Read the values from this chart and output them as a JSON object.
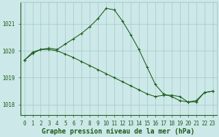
{
  "title": "Graphe pression niveau de la mer (hPa)",
  "bg_color": "#cce8e8",
  "grid_color": "#aacccc",
  "line_color": "#1a5c1a",
  "xlim": [
    -0.5,
    23.5
  ],
  "ylim": [
    1017.6,
    1021.8
  ],
  "yticks": [
    1018,
    1019,
    1020,
    1021
  ],
  "xticks": [
    0,
    1,
    2,
    3,
    4,
    5,
    6,
    7,
    8,
    9,
    10,
    11,
    12,
    13,
    14,
    15,
    16,
    17,
    18,
    19,
    20,
    21,
    22,
    23
  ],
  "series1_x": [
    0,
    1,
    2,
    3,
    4,
    5,
    6,
    7,
    8,
    9,
    10,
    11,
    12,
    13,
    14,
    15,
    16,
    17,
    18,
    19,
    20,
    21,
    22,
    23
  ],
  "series1_y": [
    1019.65,
    1019.95,
    1020.05,
    1020.1,
    1020.05,
    1020.25,
    1020.45,
    1020.65,
    1020.9,
    1021.2,
    1021.58,
    1021.52,
    1021.1,
    1020.6,
    1020.05,
    1019.4,
    1018.75,
    1018.4,
    1018.3,
    1018.15,
    1018.1,
    1018.1,
    1018.45,
    1018.5
  ],
  "series2_x": [
    0,
    1,
    2,
    3,
    4,
    5,
    6,
    7,
    8,
    9,
    10,
    11,
    12,
    13,
    14,
    15,
    16,
    17,
    18,
    19,
    20,
    21,
    22,
    23
  ],
  "series2_y": [
    1019.65,
    1019.9,
    1020.05,
    1020.05,
    1020.0,
    1019.88,
    1019.75,
    1019.6,
    1019.45,
    1019.3,
    1019.15,
    1019.0,
    1018.85,
    1018.7,
    1018.55,
    1018.4,
    1018.3,
    1018.35,
    1018.35,
    1018.3,
    1018.1,
    1018.15,
    1018.45,
    1018.5
  ],
  "tick_fontsize": 5.5,
  "xlabel_fontsize": 7.0,
  "linewidth": 0.8,
  "markersize": 3.0,
  "markeredgewidth": 0.8
}
